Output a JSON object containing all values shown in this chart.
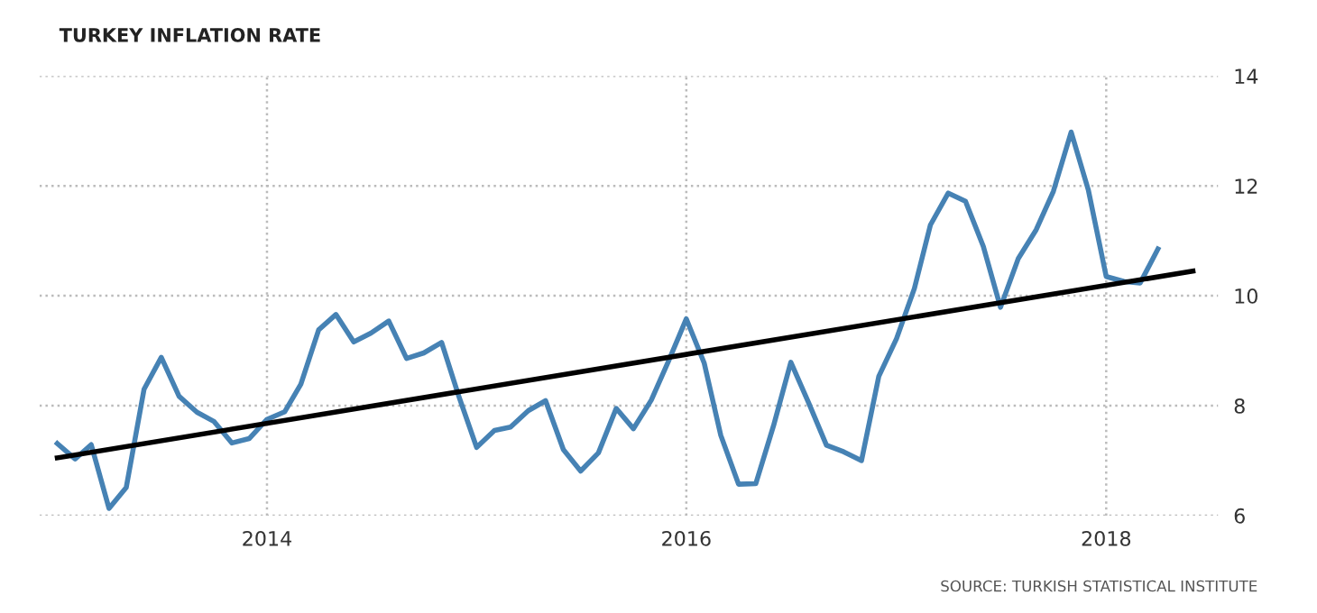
{
  "chart_data": {
    "type": "line",
    "title": "TURKEY INFLATION RATE",
    "x": [
      "2013-01",
      "2013-02",
      "2013-03",
      "2013-04",
      "2013-05",
      "2013-06",
      "2013-07",
      "2013-08",
      "2013-09",
      "2013-10",
      "2013-11",
      "2013-12",
      "2014-01",
      "2014-02",
      "2014-03",
      "2014-04",
      "2014-05",
      "2014-06",
      "2014-07",
      "2014-08",
      "2014-09",
      "2014-10",
      "2014-11",
      "2014-12",
      "2015-01",
      "2015-02",
      "2015-03",
      "2015-04",
      "2015-05",
      "2015-06",
      "2015-07",
      "2015-08",
      "2015-09",
      "2015-10",
      "2015-11",
      "2015-12",
      "2016-01",
      "2016-02",
      "2016-03",
      "2016-04",
      "2016-05",
      "2016-06",
      "2016-07",
      "2016-08",
      "2016-09",
      "2016-10",
      "2016-11",
      "2016-12",
      "2017-01",
      "2017-02",
      "2017-03",
      "2017-04",
      "2017-05",
      "2017-06",
      "2017-07",
      "2017-08",
      "2017-09",
      "2017-10",
      "2017-11",
      "2017-12",
      "2018-01",
      "2018-02",
      "2018-03",
      "2018-04"
    ],
    "series": [
      {
        "color": "#4682b4",
        "values": [
          7.31,
          7.03,
          7.29,
          6.13,
          6.51,
          8.3,
          8.88,
          8.17,
          7.88,
          7.71,
          7.32,
          7.4,
          7.75,
          7.89,
          8.39,
          9.38,
          9.66,
          9.16,
          9.32,
          9.54,
          8.86,
          8.96,
          9.15,
          8.17,
          7.24,
          7.55,
          7.61,
          7.91,
          8.09,
          7.2,
          6.81,
          7.14,
          7.95,
          7.58,
          8.1,
          8.81,
          9.58,
          8.78,
          7.46,
          6.57,
          6.58,
          7.64,
          8.79,
          8.05,
          7.28,
          7.16,
          7.0,
          8.53,
          9.22,
          10.13,
          11.29,
          11.87,
          11.72,
          10.9,
          9.79,
          10.68,
          11.2,
          11.9,
          12.98,
          11.92,
          10.35,
          10.26,
          10.23,
          10.85
        ]
      },
      {
        "type": "line",
        "color": "#000000",
        "x": [
          "2013-01",
          "2018-06"
        ],
        "values": [
          7.05,
          10.45
        ]
      }
    ],
    "xlim": [
      "2012-12-01",
      "2018-07-15"
    ],
    "xticks": [
      {
        "value": "2014-01-01",
        "label": "2014"
      },
      {
        "value": "2016-01-01",
        "label": "2016"
      },
      {
        "value": "2018-01-01",
        "label": "2018"
      }
    ],
    "ylim": [
      6,
      14
    ],
    "yticks": [
      6,
      8,
      10,
      12,
      14
    ],
    "grid": true,
    "line_style": "solid",
    "annotations": [
      "SOURCE: TURKISH STATISTICAL INSTITUTE"
    ]
  }
}
